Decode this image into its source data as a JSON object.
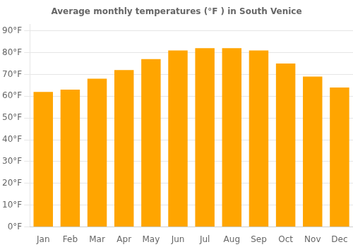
{
  "chart_data": {
    "type": "bar",
    "title": "Average monthly temperatures (°F ) in South Venice",
    "categories": [
      "Jan",
      "Feb",
      "Mar",
      "Apr",
      "May",
      "Jun",
      "Jul",
      "Aug",
      "Sep",
      "Oct",
      "Nov",
      "Dec"
    ],
    "values": [
      62,
      63,
      68,
      72,
      77,
      81,
      82,
      82,
      81,
      75,
      69,
      64
    ],
    "color": "#FFA500",
    "ylim": [
      0,
      93
    ],
    "yticks": [
      {
        "value": 0,
        "label": "0°F"
      },
      {
        "value": 10,
        "label": "10°F"
      },
      {
        "value": 20,
        "label": "20°F"
      },
      {
        "value": 30,
        "label": "30°F"
      },
      {
        "value": 40,
        "label": "40°F"
      },
      {
        "value": 50,
        "label": "50°F"
      },
      {
        "value": 60,
        "label": "60°F"
      },
      {
        "value": 70,
        "label": "70°F"
      },
      {
        "value": 80,
        "label": "80°F"
      },
      {
        "value": 90,
        "label": "90°F"
      }
    ],
    "grid": true
  }
}
